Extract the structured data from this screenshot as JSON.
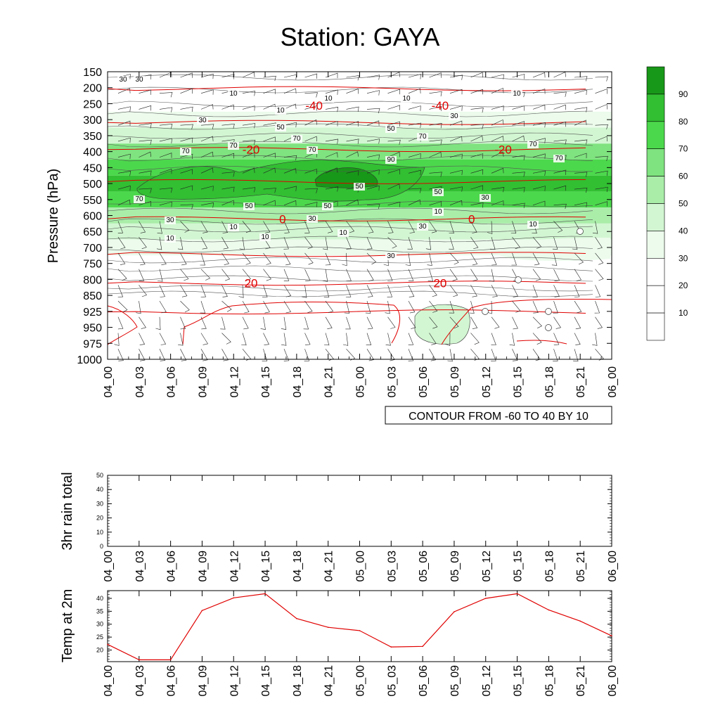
{
  "chart_data": [
    {
      "id": "cross-section",
      "type": "heatmap",
      "title": "Station: GAYA",
      "ylabel": "Pressure (hPa)",
      "xlabel": "",
      "y_levels": [
        150,
        200,
        250,
        300,
        350,
        400,
        450,
        500,
        550,
        600,
        650,
        700,
        750,
        800,
        850,
        925,
        950,
        975,
        1000
      ],
      "x_ticks": [
        "04_00",
        "04_03",
        "04_06",
        "04_09",
        "04_12",
        "04_15",
        "04_18",
        "04_21",
        "05_00",
        "05_03",
        "05_06",
        "05_09",
        "05_12",
        "05_15",
        "05_18",
        "05_21",
        "06_00"
      ],
      "shading_variable": "relative humidity (%)",
      "shading_levels": [
        10,
        20,
        30,
        40,
        50,
        60,
        70,
        80,
        90
      ],
      "shading_colors": [
        "#ffffff",
        "#ffffff",
        "#ffffff",
        "#ecfbec",
        "#d2f6d2",
        "#a9eda9",
        "#7fe37f",
        "#4cd84c",
        "#32bf32",
        "#189818"
      ],
      "humidity_profile": [
        {
          "pressure": 150,
          "rh": 20
        },
        {
          "pressure": 200,
          "rh": 15
        },
        {
          "pressure": 250,
          "rh": 12
        },
        {
          "pressure": 300,
          "rh": 30
        },
        {
          "pressure": 350,
          "rh": 45
        },
        {
          "pressure": 400,
          "rh": 65
        },
        {
          "pressure": 450,
          "rh": 75
        },
        {
          "pressure": 500,
          "rh": 80
        },
        {
          "pressure": 550,
          "rh": 72
        },
        {
          "pressure": 600,
          "rh": 55
        },
        {
          "pressure": 650,
          "rh": 45
        },
        {
          "pressure": 700,
          "rh": 30
        },
        {
          "pressure": 750,
          "rh": 15
        },
        {
          "pressure": 800,
          "rh": 12
        },
        {
          "pressure": 850,
          "rh": 10
        },
        {
          "pressure": 925,
          "rh": 10
        },
        {
          "pressure": 950,
          "rh": 10
        },
        {
          "pressure": 975,
          "rh": 10
        },
        {
          "pressure": 1000,
          "rh": 10
        }
      ],
      "rh_contour_labels": [
        "30",
        "30",
        "10",
        "10",
        "10",
        "10",
        "10",
        "30",
        "30",
        "50",
        "50",
        "70",
        "70",
        "70",
        "70",
        "70",
        "90",
        "70",
        "70",
        "70",
        "50",
        "50",
        "50",
        "50",
        "30",
        "30",
        "30",
        "10",
        "10",
        "10",
        "10",
        "10",
        "10",
        "30",
        "30"
      ],
      "temperature_contours": [
        {
          "label": "-40",
          "pressure": 250,
          "x_ticks_at": [
            "04_21",
            "05_09"
          ]
        },
        {
          "label": "-20",
          "pressure": 380,
          "x_ticks_at": [
            "04_15",
            "05_15"
          ]
        },
        {
          "label": "0",
          "pressure": 585,
          "x_ticks_at": [
            "04_18",
            "05_12"
          ]
        },
        {
          "label": "20",
          "pressure": 775,
          "x_ticks_at": [
            "04_15",
            "05_09"
          ]
        }
      ],
      "colorbar_labels": [
        "10",
        "20",
        "30",
        "40",
        "50",
        "60",
        "70",
        "80",
        "90"
      ],
      "contour_note": "CONTOUR FROM -60 TO 40 BY 10"
    },
    {
      "id": "rain-panel",
      "type": "line",
      "ylabel": "3hr rain total",
      "ylim": [
        0,
        50
      ],
      "y_ticks": [
        "0",
        "10",
        "20",
        "30",
        "40",
        "50"
      ],
      "x": [
        "04_00",
        "04_03",
        "04_06",
        "04_09",
        "04_12",
        "04_15",
        "04_18",
        "04_21",
        "05_00",
        "05_03",
        "05_06",
        "05_09",
        "05_12",
        "05_15",
        "05_18",
        "05_21",
        "06_00"
      ],
      "values": [
        0,
        0,
        0,
        0,
        0,
        0,
        0,
        0,
        0,
        0,
        0,
        0,
        0,
        0,
        0,
        0,
        0
      ]
    },
    {
      "id": "temp-panel",
      "type": "line",
      "ylabel": "Temp at 2m",
      "ylim": [
        15.5,
        43
      ],
      "y_ticks": [
        "20",
        "25",
        "30",
        "35",
        "40"
      ],
      "x": [
        "04_00",
        "04_03",
        "04_06",
        "04_09",
        "04_12",
        "04_15",
        "04_18",
        "04_21",
        "05_00",
        "05_03",
        "05_06",
        "05_09",
        "05_12",
        "05_15",
        "05_18",
        "05_21",
        "06_00"
      ],
      "values": [
        22.2,
        16.2,
        16.2,
        35.3,
        40.2,
        41.8,
        32.2,
        28.8,
        27.5,
        21.2,
        21.4,
        34.8,
        40.0,
        41.8,
        35.5,
        31.2,
        25.5
      ],
      "line_color": "#e00000"
    }
  ]
}
